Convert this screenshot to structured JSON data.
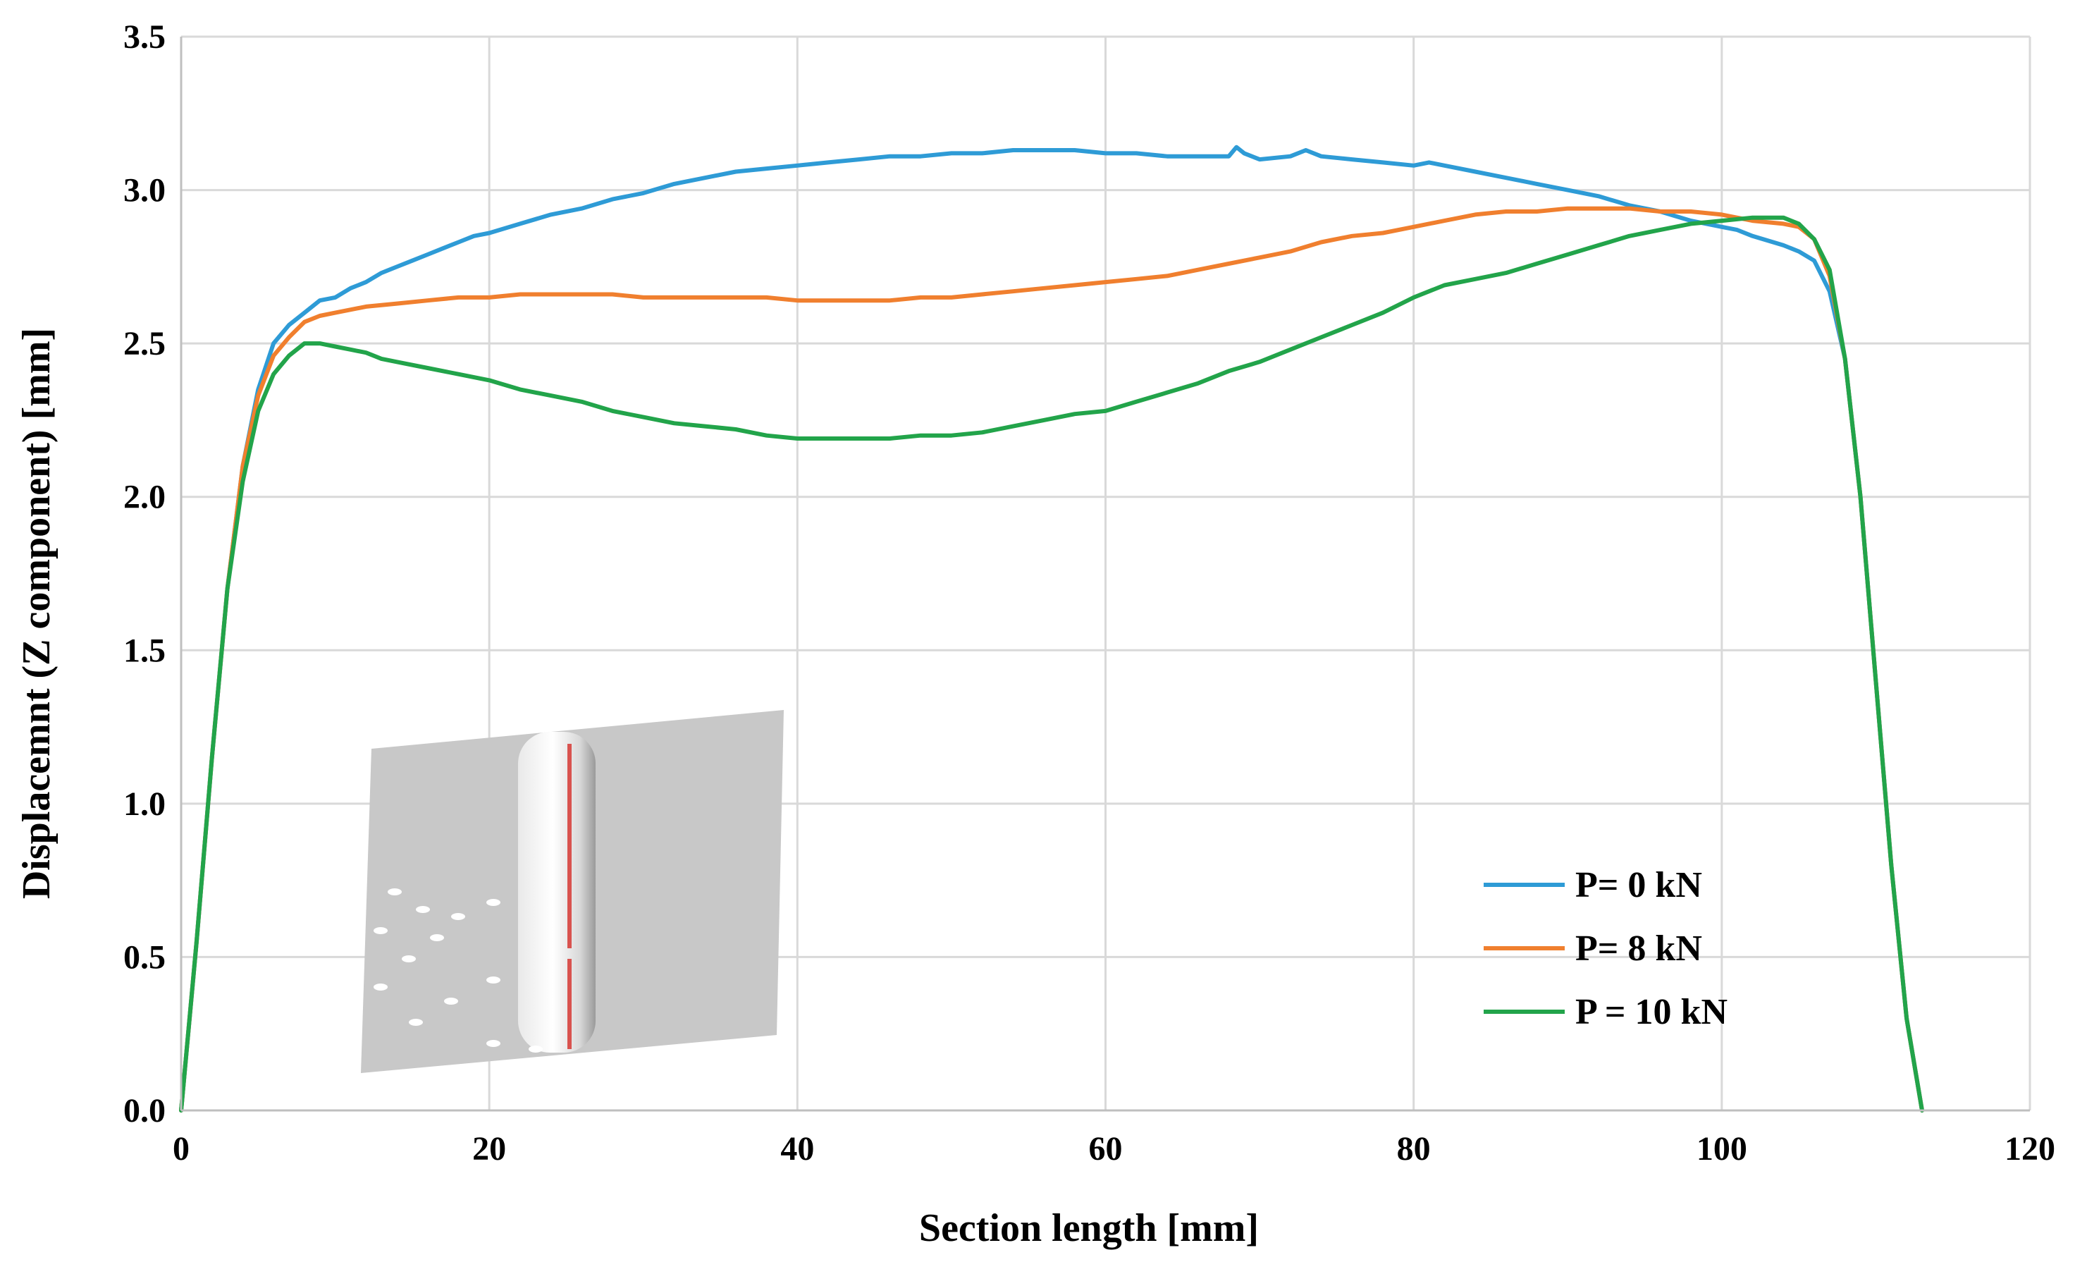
{
  "chart_data": {
    "type": "line",
    "title": "",
    "xlabel": "Section length [mm]",
    "ylabel": "Displacemnt (Z component)  [mm]",
    "xlim": [
      0,
      120
    ],
    "ylim": [
      0,
      3.5
    ],
    "xticks": [
      0,
      20,
      40,
      60,
      80,
      100,
      120
    ],
    "yticks": [
      "0.0",
      "0.5",
      "1.0",
      "1.5",
      "2.0",
      "2.5",
      "3.0",
      "3.5"
    ],
    "grid": true,
    "legend_position": "bottom-right",
    "inset": "3D scanned specimen surface with red measurement section line",
    "series": [
      {
        "name": "P= 0 kN",
        "color": "#2E9BD6",
        "points": [
          [
            0,
            0
          ],
          [
            1,
            0.55
          ],
          [
            2,
            1.15
          ],
          [
            3,
            1.7
          ],
          [
            4,
            2.1
          ],
          [
            5,
            2.35
          ],
          [
            6,
            2.5
          ],
          [
            7,
            2.56
          ],
          [
            8,
            2.6
          ],
          [
            9,
            2.64
          ],
          [
            10,
            2.65
          ],
          [
            11,
            2.68
          ],
          [
            12,
            2.7
          ],
          [
            13,
            2.73
          ],
          [
            14,
            2.75
          ],
          [
            15,
            2.77
          ],
          [
            16,
            2.79
          ],
          [
            17,
            2.81
          ],
          [
            18,
            2.83
          ],
          [
            19,
            2.85
          ],
          [
            20,
            2.86
          ],
          [
            22,
            2.89
          ],
          [
            24,
            2.92
          ],
          [
            26,
            2.94
          ],
          [
            28,
            2.97
          ],
          [
            30,
            2.99
          ],
          [
            32,
            3.02
          ],
          [
            34,
            3.04
          ],
          [
            36,
            3.06
          ],
          [
            38,
            3.07
          ],
          [
            40,
            3.08
          ],
          [
            42,
            3.09
          ],
          [
            44,
            3.1
          ],
          [
            46,
            3.11
          ],
          [
            48,
            3.11
          ],
          [
            50,
            3.12
          ],
          [
            52,
            3.12
          ],
          [
            54,
            3.13
          ],
          [
            56,
            3.13
          ],
          [
            58,
            3.13
          ],
          [
            60,
            3.12
          ],
          [
            62,
            3.12
          ],
          [
            64,
            3.11
          ],
          [
            66,
            3.11
          ],
          [
            68,
            3.11
          ],
          [
            68.5,
            3.14
          ],
          [
            69,
            3.12
          ],
          [
            70,
            3.1
          ],
          [
            72,
            3.11
          ],
          [
            73,
            3.13
          ],
          [
            74,
            3.11
          ],
          [
            76,
            3.1
          ],
          [
            78,
            3.09
          ],
          [
            80,
            3.08
          ],
          [
            81,
            3.09
          ],
          [
            82,
            3.08
          ],
          [
            84,
            3.06
          ],
          [
            86,
            3.04
          ],
          [
            88,
            3.02
          ],
          [
            90,
            3.0
          ],
          [
            92,
            2.98
          ],
          [
            94,
            2.95
          ],
          [
            96,
            2.93
          ],
          [
            98,
            2.9
          ],
          [
            100,
            2.88
          ],
          [
            101,
            2.87
          ],
          [
            102,
            2.85
          ],
          [
            104,
            2.82
          ],
          [
            105,
            2.8
          ],
          [
            106,
            2.77
          ],
          [
            107,
            2.67
          ],
          [
            108,
            2.45
          ],
          [
            109,
            2.0
          ],
          [
            110,
            1.4
          ],
          [
            111,
            0.8
          ],
          [
            112,
            0.3
          ],
          [
            113,
            0.0
          ]
        ]
      },
      {
        "name": "P= 8 kN",
        "color": "#F07F2E",
        "points": [
          [
            0,
            0
          ],
          [
            1,
            0.55
          ],
          [
            2,
            1.15
          ],
          [
            3,
            1.7
          ],
          [
            4,
            2.1
          ],
          [
            5,
            2.33
          ],
          [
            6,
            2.46
          ],
          [
            7,
            2.52
          ],
          [
            8,
            2.57
          ],
          [
            9,
            2.59
          ],
          [
            10,
            2.6
          ],
          [
            12,
            2.62
          ],
          [
            14,
            2.63
          ],
          [
            16,
            2.64
          ],
          [
            18,
            2.65
          ],
          [
            20,
            2.65
          ],
          [
            22,
            2.66
          ],
          [
            24,
            2.66
          ],
          [
            26,
            2.66
          ],
          [
            28,
            2.66
          ],
          [
            30,
            2.65
          ],
          [
            32,
            2.65
          ],
          [
            34,
            2.65
          ],
          [
            36,
            2.65
          ],
          [
            38,
            2.65
          ],
          [
            40,
            2.64
          ],
          [
            42,
            2.64
          ],
          [
            44,
            2.64
          ],
          [
            46,
            2.64
          ],
          [
            48,
            2.65
          ],
          [
            50,
            2.65
          ],
          [
            52,
            2.66
          ],
          [
            54,
            2.67
          ],
          [
            56,
            2.68
          ],
          [
            58,
            2.69
          ],
          [
            60,
            2.7
          ],
          [
            62,
            2.71
          ],
          [
            64,
            2.72
          ],
          [
            66,
            2.74
          ],
          [
            68,
            2.76
          ],
          [
            70,
            2.78
          ],
          [
            72,
            2.8
          ],
          [
            74,
            2.83
          ],
          [
            76,
            2.85
          ],
          [
            78,
            2.86
          ],
          [
            80,
            2.88
          ],
          [
            82,
            2.9
          ],
          [
            84,
            2.92
          ],
          [
            86,
            2.93
          ],
          [
            88,
            2.93
          ],
          [
            90,
            2.94
          ],
          [
            92,
            2.94
          ],
          [
            94,
            2.94
          ],
          [
            96,
            2.93
          ],
          [
            98,
            2.93
          ],
          [
            100,
            2.92
          ],
          [
            102,
            2.9
          ],
          [
            104,
            2.89
          ],
          [
            105,
            2.88
          ],
          [
            106,
            2.84
          ],
          [
            107,
            2.72
          ],
          [
            108,
            2.45
          ],
          [
            109,
            2.0
          ],
          [
            110,
            1.4
          ],
          [
            111,
            0.8
          ],
          [
            112,
            0.3
          ],
          [
            113,
            0.0
          ]
        ]
      },
      {
        "name": "P = 10 kN",
        "color": "#22A44A",
        "points": [
          [
            0,
            0
          ],
          [
            1,
            0.55
          ],
          [
            2,
            1.15
          ],
          [
            3,
            1.7
          ],
          [
            4,
            2.05
          ],
          [
            5,
            2.28
          ],
          [
            6,
            2.4
          ],
          [
            7,
            2.46
          ],
          [
            8,
            2.5
          ],
          [
            9,
            2.5
          ],
          [
            10,
            2.49
          ],
          [
            11,
            2.48
          ],
          [
            12,
            2.47
          ],
          [
            13,
            2.45
          ],
          [
            14,
            2.44
          ],
          [
            16,
            2.42
          ],
          [
            18,
            2.4
          ],
          [
            20,
            2.38
          ],
          [
            22,
            2.35
          ],
          [
            24,
            2.33
          ],
          [
            26,
            2.31
          ],
          [
            28,
            2.28
          ],
          [
            30,
            2.26
          ],
          [
            32,
            2.24
          ],
          [
            34,
            2.23
          ],
          [
            36,
            2.22
          ],
          [
            38,
            2.2
          ],
          [
            40,
            2.19
          ],
          [
            42,
            2.19
          ],
          [
            44,
            2.19
          ],
          [
            46,
            2.19
          ],
          [
            48,
            2.2
          ],
          [
            50,
            2.2
          ],
          [
            52,
            2.21
          ],
          [
            54,
            2.23
          ],
          [
            56,
            2.25
          ],
          [
            58,
            2.27
          ],
          [
            60,
            2.28
          ],
          [
            62,
            2.31
          ],
          [
            64,
            2.34
          ],
          [
            66,
            2.37
          ],
          [
            68,
            2.41
          ],
          [
            70,
            2.44
          ],
          [
            72,
            2.48
          ],
          [
            74,
            2.52
          ],
          [
            76,
            2.56
          ],
          [
            78,
            2.6
          ],
          [
            80,
            2.65
          ],
          [
            82,
            2.69
          ],
          [
            84,
            2.71
          ],
          [
            86,
            2.73
          ],
          [
            88,
            2.76
          ],
          [
            90,
            2.79
          ],
          [
            92,
            2.82
          ],
          [
            94,
            2.85
          ],
          [
            96,
            2.87
          ],
          [
            98,
            2.89
          ],
          [
            100,
            2.9
          ],
          [
            102,
            2.91
          ],
          [
            104,
            2.91
          ],
          [
            105,
            2.89
          ],
          [
            106,
            2.84
          ],
          [
            107,
            2.74
          ],
          [
            108,
            2.45
          ],
          [
            109,
            2.0
          ],
          [
            110,
            1.4
          ],
          [
            111,
            0.8
          ],
          [
            112,
            0.3
          ],
          [
            113,
            0.0
          ]
        ]
      }
    ]
  }
}
